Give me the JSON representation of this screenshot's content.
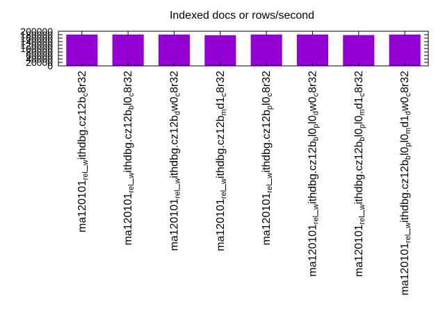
{
  "chart_data": {
    "type": "bar",
    "title": "Indexed docs or rows/second",
    "xlabel": "",
    "ylabel": "",
    "ylim": [
      0,
      200000
    ],
    "yticks": [
      "0",
      "20000",
      "40000",
      "60000",
      "80000",
      "100000",
      "120000",
      "140000",
      "160000",
      "180000",
      "200000"
    ],
    "bar_color": "#9400d3",
    "grid": false,
    "legend": "none",
    "categories": [
      "ma120101_rel_withdbg.cz12b_c8r32",
      "ma120101_rel_withdbg.cz12b_lo_c8r32",
      "ma120101_rel_withdbg.cz12b_dw0_c8r32",
      "ma120101_rel_withdbg.cz12b_md1_c8r32",
      "ma120101_rel_withdbg.cz12b_pl0_c8r32",
      "ma120101_rel_withdbg.cz12b_lo_pl0_dw0_c8r32",
      "ma120101_rel_withdbg.cz12b_lo_pl0_md1_c8r32",
      "ma120101_rel_withdbg.cz12b_lo_pl0_md1_dw0_c8r32"
    ],
    "category_parts": [
      [
        [
          "ma120101",
          ""
        ],
        [
          "rel",
          "sub"
        ],
        [
          "_",
          ""
        ],
        [
          "w",
          "sub"
        ],
        [
          "ithdbg.cz12b",
          ""
        ],
        [
          "c",
          "sub"
        ],
        [
          "8r32",
          ""
        ]
      ],
      [
        [
          "ma120101",
          ""
        ],
        [
          "rel",
          "sub"
        ],
        [
          "_",
          ""
        ],
        [
          "w",
          "sub"
        ],
        [
          "ithdbg.cz12b",
          ""
        ],
        [
          "b",
          "sub"
        ],
        [
          "l0",
          ""
        ],
        [
          "c",
          "sub"
        ],
        [
          "8r32",
          ""
        ]
      ],
      [
        [
          "ma120101",
          ""
        ],
        [
          "rel",
          "sub"
        ],
        [
          "_",
          ""
        ],
        [
          "w",
          "sub"
        ],
        [
          "ithdbg.cz12b",
          ""
        ],
        [
          "d",
          "sub"
        ],
        [
          "w0",
          ""
        ],
        [
          "c",
          "sub"
        ],
        [
          "8r32",
          ""
        ]
      ],
      [
        [
          "ma120101",
          ""
        ],
        [
          "rel",
          "sub"
        ],
        [
          "_",
          ""
        ],
        [
          "w",
          "sub"
        ],
        [
          "ithdbg.cz12b",
          ""
        ],
        [
          "m",
          "sub"
        ],
        [
          "d1",
          ""
        ],
        [
          "c",
          "sub"
        ],
        [
          "8r32",
          ""
        ]
      ],
      [
        [
          "ma120101",
          ""
        ],
        [
          "rel",
          "sub"
        ],
        [
          "_",
          ""
        ],
        [
          "w",
          "sub"
        ],
        [
          "ithdbg.cz12b",
          ""
        ],
        [
          "p",
          "sub"
        ],
        [
          "l0",
          ""
        ],
        [
          "c",
          "sub"
        ],
        [
          "8r32",
          ""
        ]
      ],
      [
        [
          "ma120101",
          ""
        ],
        [
          "rel",
          "sub"
        ],
        [
          "_",
          ""
        ],
        [
          "w",
          "sub"
        ],
        [
          "ithdbg.cz12b",
          ""
        ],
        [
          "b",
          "sub"
        ],
        [
          "l0",
          ""
        ],
        [
          "p",
          "sub"
        ],
        [
          "l0",
          ""
        ],
        [
          "d",
          "sub"
        ],
        [
          "w0",
          ""
        ],
        [
          "c",
          "sub"
        ],
        [
          "8r32",
          ""
        ]
      ],
      [
        [
          "ma120101",
          ""
        ],
        [
          "rel",
          "sub"
        ],
        [
          "_",
          ""
        ],
        [
          "w",
          "sub"
        ],
        [
          "ithdbg.cz12b",
          ""
        ],
        [
          "b",
          "sub"
        ],
        [
          "l0",
          ""
        ],
        [
          "p",
          "sub"
        ],
        [
          "l0",
          ""
        ],
        [
          "m",
          "sub"
        ],
        [
          "d1",
          ""
        ],
        [
          "c",
          "sub"
        ],
        [
          "8r32",
          ""
        ]
      ],
      [
        [
          "ma120101",
          ""
        ],
        [
          "rel",
          "sub"
        ],
        [
          "_",
          ""
        ],
        [
          "w",
          "sub"
        ],
        [
          "ithdbg.cz12b",
          ""
        ],
        [
          "b",
          "sub"
        ],
        [
          "l0",
          ""
        ],
        [
          "p",
          "sub"
        ],
        [
          "l0",
          ""
        ],
        [
          "m",
          "sub"
        ],
        [
          "d1",
          ""
        ],
        [
          "d",
          "sub"
        ],
        [
          "w0",
          ""
        ],
        [
          "c",
          "sub"
        ],
        [
          "8r32",
          ""
        ]
      ]
    ],
    "values": [
      181000,
      181000,
      181000,
      177000,
      181000,
      181000,
      178000,
      181000
    ]
  }
}
